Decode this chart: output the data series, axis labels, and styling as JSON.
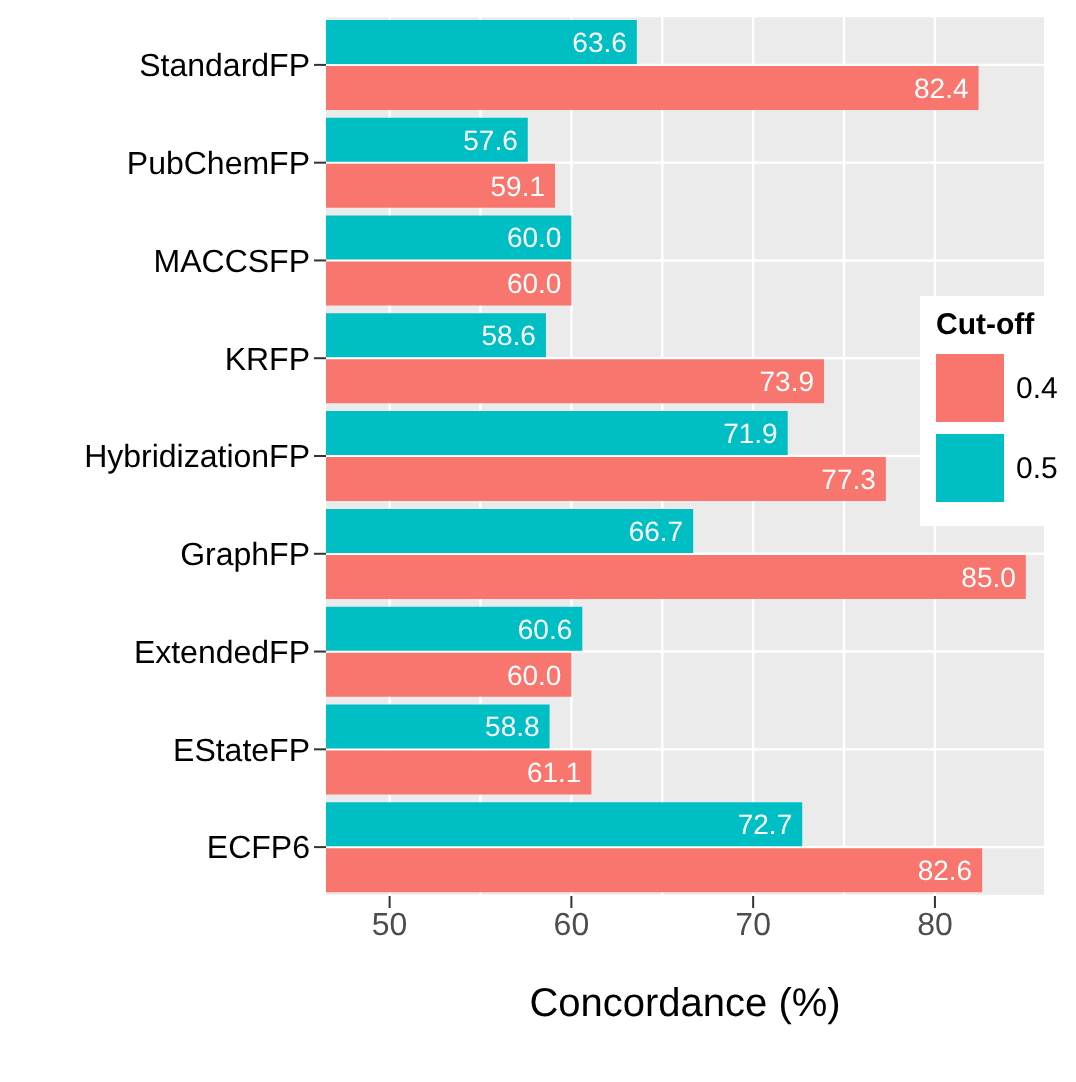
{
  "chart_data": {
    "type": "bar",
    "orientation": "horizontal",
    "xlabel": "Concordance (%)",
    "legend_title": "Cut-off",
    "legend": "right",
    "grid": true,
    "categories": [
      "StandardFP",
      "PubChemFP",
      "MACCSFP",
      "KRFP",
      "HybridizationFP",
      "GraphFP",
      "ExtendedFP",
      "EStateFP",
      "ECFP6"
    ],
    "series": [
      {
        "name": "0.4",
        "color": "#f8766d",
        "values": [
          82.4,
          59.1,
          60.0,
          73.9,
          77.3,
          85.0,
          60.0,
          61.1,
          82.6
        ],
        "value_labels": [
          "82.4",
          "59.1",
          "60.0",
          "73.9",
          "77.3",
          "85.0",
          "60.0",
          "61.1",
          "82.6"
        ]
      },
      {
        "name": "0.5",
        "color": "#00bfc4",
        "values": [
          63.6,
          57.6,
          60.0,
          58.6,
          71.9,
          66.7,
          60.6,
          58.8,
          72.7
        ],
        "value_labels": [
          "63.6",
          "57.6",
          "60.0",
          "58.6",
          "71.9",
          "66.7",
          "60.6",
          "58.8",
          "72.7"
        ]
      }
    ],
    "xlim": [
      46.5,
      86
    ],
    "xticks": [
      50,
      60,
      70,
      80
    ]
  }
}
